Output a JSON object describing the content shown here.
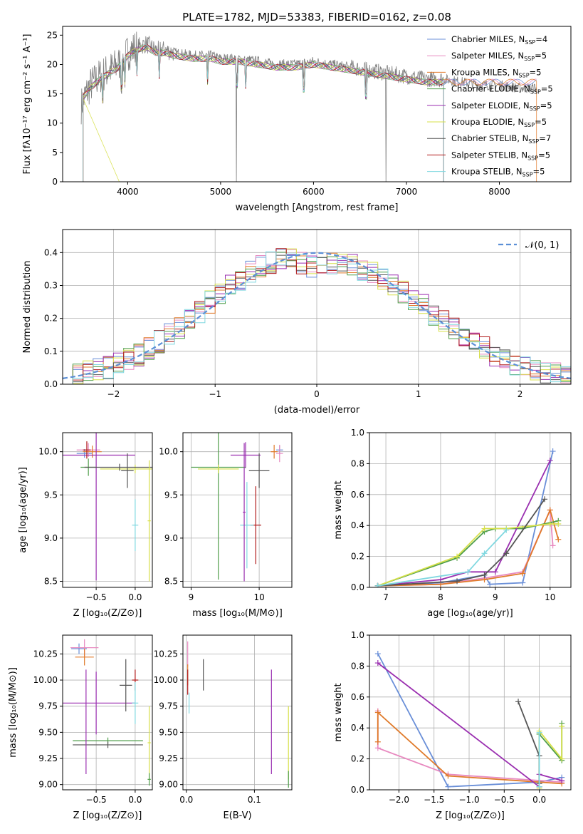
{
  "page": {
    "title": "PLATE=1782, MJD=53383, FIBERID=0162, z=0.08"
  },
  "colors": {
    "Chabrier MILES": "#6a8fd8",
    "Salpeter MILES": "#e88ac0",
    "Kroupa MILES": "#e07a2a",
    "Chabrier ELODIE": "#4f9e4a",
    "Salpeter ELODIE": "#9a2fb0",
    "Kroupa ELODIE": "#d7e04a",
    "Chabrier STELIB": "#555555",
    "Salpeter STELIB": "#b01818",
    "Kroupa STELIB": "#80d8e0",
    "gauss": "#5b8fd6",
    "grid": "#b0b0b0"
  },
  "chart_data": [
    {
      "id": "spectrum",
      "type": "line",
      "title": "PLATE=1782, MJD=53383, FIBERID=0162, z=0.08",
      "xlabel": "wavelength [Angstrom, rest frame]",
      "ylabel": "Flux [fλ10⁻¹⁷ erg cm⁻² s⁻¹ A⁻¹]",
      "xlim": [
        3300,
        8770
      ],
      "ylim": [
        0,
        26.5
      ],
      "xticks": [
        4000,
        5000,
        6000,
        7000,
        8000
      ],
      "yticks": [
        0,
        5,
        10,
        15,
        20,
        25
      ],
      "grid": false,
      "legend_position": "upper-right",
      "legend": [
        {
          "name": "Chabrier MILES, N",
          "sub": "SSP",
          "tail": "=4",
          "key": "Chabrier MILES"
        },
        {
          "name": "Salpeter MILES, N",
          "sub": "SSP",
          "tail": "=5",
          "key": "Salpeter MILES"
        },
        {
          "name": "Kroupa MILES, N",
          "sub": "SSP",
          "tail": "=5",
          "key": "Kroupa MILES"
        },
        {
          "name": "Chabrier ELODIE, N",
          "sub": "SSP",
          "tail": "=5",
          "key": "Chabrier ELODIE"
        },
        {
          "name": "Salpeter ELODIE, N",
          "sub": "SSP",
          "tail": "=5",
          "key": "Salpeter ELODIE"
        },
        {
          "name": "Kroupa ELODIE, N",
          "sub": "SSP",
          "tail": "=5",
          "key": "Kroupa ELODIE"
        },
        {
          "name": "Chabrier STELIB, N",
          "sub": "SSP",
          "tail": "=7",
          "key": "Chabrier STELIB"
        },
        {
          "name": "Salpeter STELIB, N",
          "sub": "SSP",
          "tail": "=5",
          "key": "Salpeter STELIB"
        },
        {
          "name": "Kroupa STELIB, N",
          "sub": "SSP",
          "tail": "=5",
          "key": "Kroupa STELIB"
        }
      ],
      "data_spectrum": {
        "x": [
          3500,
          3550,
          3600,
          3700,
          3800,
          3900,
          4000,
          4100,
          4200,
          4300,
          4400,
          4500,
          4700,
          4900,
          5000,
          5200,
          5400,
          5600,
          5800,
          6000,
          6200,
          6400,
          6600,
          6800,
          7000,
          7200,
          7400,
          7600,
          7800,
          8000,
          8200,
          8400
        ],
        "y": [
          13,
          15,
          16.5,
          18,
          19,
          20,
          22,
          23,
          23.5,
          22.5,
          22.5,
          22,
          21.5,
          21.5,
          21,
          21,
          20.5,
          20,
          20,
          20.5,
          20,
          19.5,
          19,
          18.5,
          18,
          17.5,
          17.5,
          17,
          16.5,
          16.5,
          16,
          16
        ]
      },
      "model_spectrum": {
        "x": [
          3500,
          3600,
          3700,
          3800,
          3900,
          4000,
          4100,
          4200,
          4300,
          4400,
          4500,
          4700,
          4900,
          5000,
          5200,
          5400,
          5600,
          5800,
          6000,
          6200,
          6400,
          6600,
          6800,
          7000,
          7200,
          7400
        ],
        "y": [
          14,
          16,
          17.5,
          18.5,
          19.5,
          21.5,
          22.5,
          23,
          22,
          22,
          21.5,
          21,
          21,
          20.5,
          20.5,
          20,
          19.5,
          19.5,
          20,
          19.5,
          19,
          18.5,
          18,
          17.5,
          17,
          17
        ]
      },
      "absorption_lines": [
        3730,
        3935,
        3970,
        4102,
        4340,
        4861,
        5175,
        5270,
        5893,
        6563
      ]
    },
    {
      "id": "residuals",
      "type": "line",
      "xlabel": "(data-model)/error",
      "ylabel": "Normed distribution",
      "xlim": [
        -2.5,
        2.5
      ],
      "ylim": [
        0,
        0.47
      ],
      "xticks": [
        -2,
        -1,
        0,
        1,
        2
      ],
      "yticks": [
        0.0,
        0.1,
        0.2,
        0.3,
        0.4
      ],
      "grid": true,
      "legend_position": "upper-right",
      "gauss_label": "𝒩(0, 1)",
      "hist_centers": [
        -2.45,
        -2.35,
        -2.25,
        -2.15,
        -2.05,
        -1.95,
        -1.85,
        -1.75,
        -1.65,
        -1.55,
        -1.45,
        -1.35,
        -1.25,
        -1.15,
        -1.05,
        -0.95,
        -0.85,
        -0.75,
        -0.65,
        -0.55,
        -0.45,
        -0.35,
        -0.25,
        -0.15,
        -0.05,
        0.05,
        0.15,
        0.25,
        0.35,
        0.45,
        0.55,
        0.65,
        0.75,
        0.85,
        0.95,
        1.05,
        1.15,
        1.25,
        1.35,
        1.45,
        1.55,
        1.65,
        1.75,
        1.85,
        1.95,
        2.05,
        2.15,
        2.25,
        2.35,
        2.45
      ],
      "hist_base": [
        0.02,
        0.03,
        0.04,
        0.045,
        0.05,
        0.06,
        0.075,
        0.09,
        0.11,
        0.13,
        0.15,
        0.17,
        0.2,
        0.22,
        0.25,
        0.27,
        0.3,
        0.32,
        0.34,
        0.36,
        0.37,
        0.38,
        0.38,
        0.37,
        0.36,
        0.36,
        0.37,
        0.37,
        0.36,
        0.35,
        0.34,
        0.32,
        0.3,
        0.28,
        0.26,
        0.24,
        0.21,
        0.19,
        0.17,
        0.15,
        0.13,
        0.11,
        0.09,
        0.075,
        0.06,
        0.05,
        0.04,
        0.035,
        0.03,
        0.025
      ]
    },
    {
      "id": "age-vs-Z",
      "type": "scatter",
      "xlabel": "Z [log₁₀(Z/Z⊙)]",
      "ylabel": "age  [log₁₀(age/yr)]",
      "xlim": [
        -0.93,
        0.22
      ],
      "ylim": [
        8.43,
        10.22
      ],
      "xticks": [
        -0.5,
        0.0
      ],
      "yticks": [
        8.5,
        9.0,
        9.5,
        10.0
      ],
      "grid": true,
      "points": [
        {
          "s": "Chabrier MILES",
          "x": -0.65,
          "y": 9.98,
          "xe": 0.1,
          "ye": 0.05
        },
        {
          "s": "Salpeter MILES",
          "x": -0.6,
          "y": 10.02,
          "xe": 0.15,
          "ye": 0.08
        },
        {
          "s": "Kroupa MILES",
          "x": -0.55,
          "y": 10.0,
          "xe": 0.12,
          "ye": 0.07
        },
        {
          "s": "Chabrier ELODIE",
          "x": -0.6,
          "y": 9.82,
          "xe": 0.1,
          "ye": 0.1
        },
        {
          "s": "Salpeter ELODIE",
          "x": -0.5,
          "y": 9.96,
          "xe": 0.5,
          "ye": 1.45
        },
        {
          "s": "Kroupa ELODIE",
          "x": 0.0,
          "y": 9.8,
          "xe": 0.45,
          "ye": 0.05
        },
        {
          "s": "Chabrier STELIB",
          "x": -0.1,
          "y": 9.78,
          "xe": 0.08,
          "ye": 0.2
        },
        {
          "s": "Salpeter STELIB",
          "x": -0.62,
          "y": 10.02,
          "xe": 0.05,
          "ye": 0.1
        },
        {
          "s": "Kroupa STELIB",
          "x": 0.0,
          "y": 9.15,
          "xe": 0.04,
          "ye": 0.3
        },
        {
          "s": "Chabrier STELIB",
          "x": -0.2,
          "y": 9.82,
          "xe": 0.45,
          "ye": 0.04
        },
        {
          "s": "Kroupa ELODIE",
          "x": 0.18,
          "y": 9.2,
          "xe": 0.02,
          "ye": 0.7
        }
      ]
    },
    {
      "id": "age-vs-mass",
      "type": "scatter",
      "xlabel": "mass [log₁₀(M/M⊙)]",
      "ylabel": "",
      "xlim": [
        8.88,
        10.48
      ],
      "ylim": [
        8.43,
        10.22
      ],
      "xticks": [
        9,
        10
      ],
      "yticks": [
        8.5,
        9.0,
        9.5,
        10.0
      ],
      "grid": true,
      "points": [
        {
          "s": "Chabrier MILES",
          "x": 10.3,
          "y": 10.02,
          "xe": 0.05,
          "ye": 0.05
        },
        {
          "s": "Salpeter MILES",
          "x": 10.3,
          "y": 9.98,
          "xe": 0.05,
          "ye": 0.1
        },
        {
          "s": "Kroupa MILES",
          "x": 10.22,
          "y": 10.0,
          "xe": 0.05,
          "ye": 0.08
        },
        {
          "s": "Salpeter ELODIE",
          "x": 9.8,
          "y": 9.96,
          "xe": 0.22,
          "ye": 0.15
        },
        {
          "s": "Chabrier ELODIE",
          "x": 9.4,
          "y": 9.82,
          "xe": 0.4,
          "ye": 1.3
        },
        {
          "s": "Kroupa ELODIE",
          "x": 9.4,
          "y": 9.8,
          "xe": 0.3,
          "ye": 0.05
        },
        {
          "s": "Chabrier STELIB",
          "x": 10.0,
          "y": 9.78,
          "xe": 0.15,
          "ye": 0.2
        },
        {
          "s": "Salpeter STELIB",
          "x": 9.95,
          "y": 9.15,
          "xe": 0.08,
          "ye": 0.45
        },
        {
          "s": "Kroupa STELIB",
          "x": 9.82,
          "y": 9.15,
          "xe": 0.1,
          "ye": 0.5
        },
        {
          "s": "Salpeter ELODIE",
          "x": 9.78,
          "y": 9.3,
          "xe": 0.02,
          "ye": 0.8
        }
      ]
    },
    {
      "id": "mass-weight-vs-age",
      "type": "line",
      "xlabel": "age  [log₁₀(age/yr)]",
      "ylabel": "mass weight",
      "xlim": [
        6.7,
        10.38
      ],
      "ylim": [
        0,
        1.0
      ],
      "xticks": [
        7,
        8,
        9,
        10
      ],
      "yticks": [
        0.0,
        0.2,
        0.4,
        0.6,
        0.8,
        1.0
      ],
      "grid": true,
      "series": [
        {
          "s": "Chabrier MILES",
          "x": [
            6.85,
            8.0,
            8.8,
            8.9,
            9.5,
            10.05
          ],
          "y": [
            0.01,
            0.03,
            0.08,
            0.02,
            0.03,
            0.88
          ]
        },
        {
          "s": "Salpeter MILES",
          "x": [
            6.85,
            8.0,
            8.8,
            9.5,
            10.0,
            10.05
          ],
          "y": [
            0.01,
            0.02,
            0.06,
            0.1,
            0.5,
            0.27
          ]
        },
        {
          "s": "Kroupa MILES",
          "x": [
            6.85,
            8.0,
            8.8,
            9.5,
            10.0,
            10.15
          ],
          "y": [
            0.01,
            0.02,
            0.05,
            0.09,
            0.5,
            0.31
          ]
        },
        {
          "s": "Chabrier ELODIE",
          "x": [
            6.85,
            8.3,
            8.8,
            9.0,
            9.5,
            10.15
          ],
          "y": [
            0.01,
            0.19,
            0.36,
            0.38,
            0.38,
            0.43
          ]
        },
        {
          "s": "Salpeter ELODIE",
          "x": [
            6.85,
            8.0,
            8.5,
            9.0,
            10.0
          ],
          "y": [
            0.01,
            0.05,
            0.1,
            0.1,
            0.82
          ]
        },
        {
          "s": "Kroupa ELODIE",
          "x": [
            6.85,
            8.3,
            8.8,
            9.2,
            10.0,
            10.15
          ],
          "y": [
            0.01,
            0.2,
            0.38,
            0.38,
            0.41,
            0.41
          ]
        },
        {
          "s": "Chabrier STELIB",
          "x": [
            6.85,
            8.3,
            8.8,
            9.2,
            9.9
          ],
          "y": [
            0.01,
            0.04,
            0.08,
            0.22,
            0.57
          ]
        },
        {
          "s": "Kroupa STELIB",
          "x": [
            6.85,
            8.5,
            8.8,
            9.2
          ],
          "y": [
            0.01,
            0.1,
            0.22,
            0.37
          ]
        }
      ]
    },
    {
      "id": "mass-vs-Z",
      "type": "scatter",
      "xlabel": "Z [log₁₀(Z/Z⊙)]",
      "ylabel": "mass [log₁₀(M/M⊙)]",
      "xlim": [
        -0.93,
        0.22
      ],
      "ylim": [
        8.95,
        10.43
      ],
      "xticks": [
        -0.5,
        0.0
      ],
      "yticks": [
        9.0,
        9.25,
        9.5,
        9.75,
        10.0,
        10.25
      ],
      "grid": true,
      "points": [
        {
          "s": "Chabrier MILES",
          "x": -0.72,
          "y": 10.3,
          "xe": 0.1,
          "ye": 0.05
        },
        {
          "s": "Salpeter MILES",
          "x": -0.65,
          "y": 10.31,
          "xe": 0.18,
          "ye": 0.08
        },
        {
          "s": "Kroupa MILES",
          "x": -0.65,
          "y": 10.22,
          "xe": 0.12,
          "ye": 0.08
        },
        {
          "s": "Salpeter ELODIE",
          "x": -0.5,
          "y": 9.78,
          "xe": 0.5,
          "ye": 0.3
        },
        {
          "s": "Chabrier ELODIE",
          "x": -0.35,
          "y": 9.42,
          "xe": 0.45,
          "ye": 0.03
        },
        {
          "s": "Chabrier STELIB",
          "x": -0.12,
          "y": 9.95,
          "xe": 0.08,
          "ye": 0.25
        },
        {
          "s": "Salpeter STELIB",
          "x": 0.0,
          "y": 10.0,
          "xe": 0.04,
          "ye": 0.1
        },
        {
          "s": "Kroupa STELIB",
          "x": 0.0,
          "y": 9.78,
          "xe": 0.04,
          "ye": 0.2
        },
        {
          "s": "Chabrier STELIB",
          "x": -0.35,
          "y": 9.38,
          "xe": 0.45,
          "ye": 0.03
        },
        {
          "s": "Kroupa ELODIE",
          "x": 0.18,
          "y": 9.4,
          "xe": 0.02,
          "ye": 0.35
        },
        {
          "s": "Chabrier ELODIE",
          "x": 0.18,
          "y": 9.05,
          "xe": 0.02,
          "ye": 0.06
        },
        {
          "s": "Salpeter ELODIE",
          "x": -0.63,
          "y": 9.6,
          "xe": 0.0,
          "ye": 0.5
        }
      ]
    },
    {
      "id": "mass-vs-EBV",
      "type": "scatter",
      "xlabel": "E(B-V)",
      "ylabel": "",
      "xlim": [
        -0.005,
        0.155
      ],
      "ylim": [
        8.95,
        10.43
      ],
      "xticks": [
        0.0,
        0.1
      ],
      "yticks": [
        9.0,
        9.25,
        9.5,
        9.75,
        10.0,
        10.25
      ],
      "grid": true,
      "points": [
        {
          "s": "Salpeter MILES",
          "x": 0.002,
          "y": 10.25,
          "xe": 0,
          "ye": 0.12
        },
        {
          "s": "Kroupa MILES",
          "x": 0.002,
          "y": 10.05,
          "xe": 0,
          "ye": 0.1
        },
        {
          "s": "Salpeter STELIB",
          "x": 0.002,
          "y": 9.98,
          "xe": 0,
          "ye": 0.12
        },
        {
          "s": "Kroupa STELIB",
          "x": 0.004,
          "y": 9.78,
          "xe": 0,
          "ye": 0.1
        },
        {
          "s": "Chabrier STELIB",
          "x": 0.025,
          "y": 10.05,
          "xe": 0,
          "ye": 0.15
        },
        {
          "s": "Salpeter ELODIE",
          "x": 0.125,
          "y": 9.6,
          "xe": 0,
          "ye": 0.5
        },
        {
          "s": "Kroupa ELODIE",
          "x": 0.15,
          "y": 9.4,
          "xe": 0,
          "ye": 0.35
        },
        {
          "s": "Chabrier ELODIE",
          "x": 0.15,
          "y": 9.05,
          "xe": 0,
          "ye": 0.08
        }
      ]
    },
    {
      "id": "mass-weight-vs-Z",
      "type": "line",
      "xlabel": "Z [log₁₀(Z/Z⊙)]",
      "ylabel": "mass weight",
      "xlim": [
        -2.42,
        0.45
      ],
      "ylim": [
        0,
        1.0
      ],
      "xticks": [
        -2.0,
        -1.5,
        -1.0,
        -0.5,
        0.0
      ],
      "yticks": [
        0.0,
        0.2,
        0.4,
        0.6,
        0.8,
        1.0
      ],
      "grid": true,
      "series": [
        {
          "s": "Chabrier MILES",
          "x": [
            -2.3,
            -1.3,
            0.0,
            0.32
          ],
          "y": [
            0.88,
            0.02,
            0.05,
            0.08
          ]
        },
        {
          "s": "Salpeter MILES",
          "x": [
            -2.3,
            -2.3,
            -1.3,
            0.0,
            0.32
          ],
          "y": [
            0.51,
            0.27,
            0.1,
            0.06,
            0.05
          ]
        },
        {
          "s": "Kroupa MILES",
          "x": [
            -2.3,
            -2.3,
            -1.3,
            0.0,
            0.32
          ],
          "y": [
            0.31,
            0.5,
            0.09,
            0.05,
            0.04
          ]
        },
        {
          "s": "Chabrier ELODIE",
          "x": [
            0.0,
            0.0,
            0.32,
            0.32
          ],
          "y": [
            0.02,
            0.36,
            0.19,
            0.43
          ]
        },
        {
          "s": "Salpeter ELODIE",
          "x": [
            -2.3,
            0.0,
            0.0,
            0.32
          ],
          "y": [
            0.82,
            0.02,
            0.1,
            0.06
          ]
        },
        {
          "s": "Kroupa ELODIE",
          "x": [
            0.0,
            0.0,
            0.32,
            0.32
          ],
          "y": [
            0.01,
            0.38,
            0.2,
            0.41
          ]
        },
        {
          "s": "Chabrier STELIB",
          "x": [
            -0.3,
            0.0,
            0.0
          ],
          "y": [
            0.57,
            0.22,
            0.04
          ]
        },
        {
          "s": "Kroupa STELIB",
          "x": [
            0.0,
            0.0
          ],
          "y": [
            0.02,
            0.37
          ]
        }
      ]
    }
  ]
}
